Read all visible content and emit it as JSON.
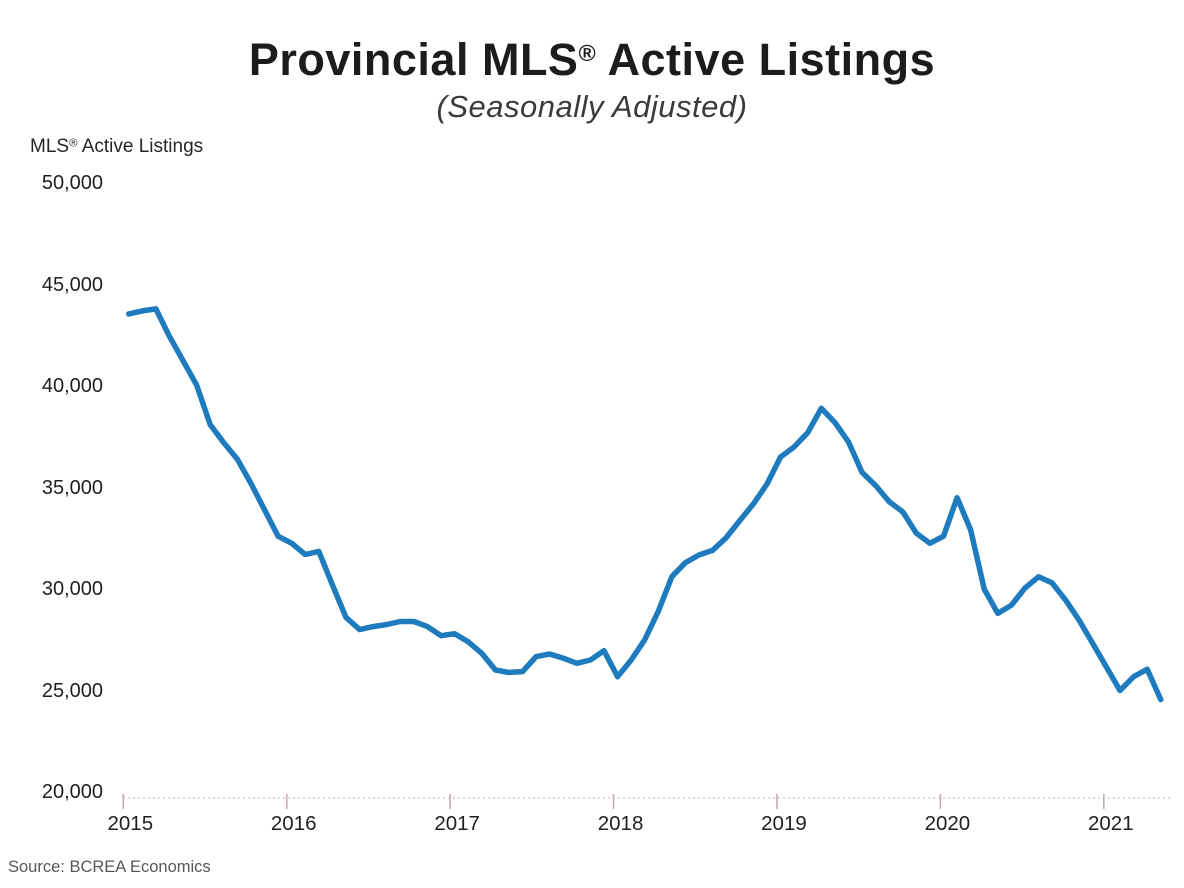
{
  "header": {
    "title_pre": "Provincial MLS",
    "title_reg": "®",
    "title_post": " Active Listings",
    "subtitle": "(Seasonally Adjusted)"
  },
  "y_axis": {
    "title_pre": "MLS",
    "title_reg": "®",
    "title_post": " Active Listings"
  },
  "footer": {
    "source": "Source: BCREA Economics"
  },
  "chart_data": {
    "type": "line",
    "title": "Provincial MLS® Active Listings",
    "subtitle": "(Seasonally Adjusted)",
    "ylabel": "MLS® Active Listings",
    "xlabel": "",
    "source": "Source: BCREA Economics",
    "frequency": "monthly",
    "x_range": [
      "2015-01",
      "2021-05"
    ],
    "x_tick_labels": [
      "2015",
      "2016",
      "2017",
      "2018",
      "2019",
      "2020",
      "2021"
    ],
    "y_ticks": [
      20000,
      25000,
      30000,
      35000,
      40000,
      45000,
      50000
    ],
    "y_tick_labels": [
      "20,000",
      "25,000",
      "30,000",
      "35,000",
      "40,000",
      "45,000",
      "50,000"
    ],
    "ylim": [
      20000,
      50000
    ],
    "grid": false,
    "legend": "none",
    "line_color": "#1e7bbd",
    "axis_line_color": "#dcc6c6",
    "tick_color": "#c0afaf",
    "values": [
      43550,
      43700,
      43800,
      42450,
      41250,
      40050,
      38100,
      37200,
      36400,
      35200,
      33900,
      32600,
      32250,
      31700,
      31850,
      30200,
      28600,
      28000,
      28150,
      28250,
      28400,
      28400,
      28150,
      27700,
      27800,
      27400,
      26830,
      26010,
      25890,
      25930,
      26670,
      26800,
      26590,
      26340,
      26500,
      26960,
      25680,
      26500,
      27500,
      28900,
      30610,
      31300,
      31680,
      31900,
      32530,
      33370,
      34190,
      35170,
      36500,
      37000,
      37700,
      38900,
      38200,
      37250,
      35750,
      35100,
      34300,
      33800,
      32750,
      32250,
      32600,
      34500,
      32900,
      30000,
      28800,
      29200,
      30050,
      30600,
      30300,
      29450,
      28450,
      27300,
      26150,
      25000,
      25680,
      26050,
      24550
    ]
  }
}
